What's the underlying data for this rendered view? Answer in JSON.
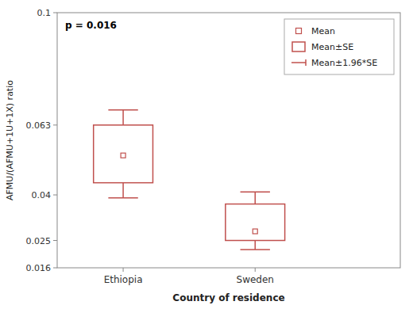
{
  "chart_data": {
    "type": "box",
    "categories": [
      "Ethiopia",
      "Sweden"
    ],
    "values": [
      0.053,
      0.028
    ],
    "se_lower": [
      0.044,
      0.025
    ],
    "se_upper": [
      0.063,
      0.037
    ],
    "ci_lower": [
      0.039,
      0.022
    ],
    "ci_upper": [
      0.068,
      0.041
    ],
    "ylim": [
      0.016,
      0.1
    ],
    "yticks": [
      0.016,
      0.025,
      0.04,
      0.063,
      0.1
    ],
    "ylabel": "AFMU/(AFMU+1U+1X) ratio",
    "xlabel": "Country of residence",
    "color": "#C0504D",
    "annotations": [
      "p = 0.016"
    ],
    "legend_entries": [
      "Mean",
      "Mean±SE",
      "Mean±1.96*SE"
    ],
    "legend": "upper right",
    "grid": false
  }
}
